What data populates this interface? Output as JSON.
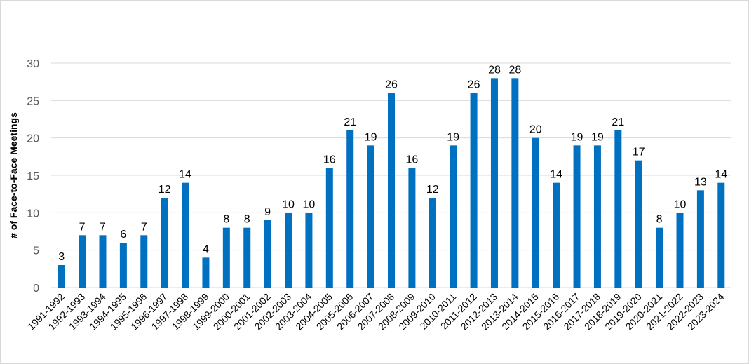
{
  "chart_data": {
    "type": "bar",
    "title": "",
    "xlabel": "",
    "ylabel": "# of Face-to-Face Meetings",
    "ylim": [
      0,
      30
    ],
    "yticks": [
      0,
      5,
      10,
      15,
      20,
      25,
      30
    ],
    "grid": true,
    "legend": "none",
    "bar_color": "#0070c0",
    "categories": [
      "1991-1992",
      "1992-1993",
      "1993-1994",
      "1994-1995",
      "1995-1996",
      "1996-1997",
      "1997-1998",
      "1998-1999",
      "1999-2000",
      "2000-2001",
      "2001-2002",
      "2002-2003",
      "2003-2004",
      "2004-2005",
      "2005-2006",
      "2006-2007",
      "2007-2008",
      "2008-2009",
      "2009-2010",
      "2010-2011",
      "2011-2012",
      "2012-2013",
      "2013-2014",
      "2014-2015",
      "2015-2016",
      "2016-2017",
      "2017-2018",
      "2018-2019",
      "2019-2020",
      "2020-2021",
      "2021-2022",
      "2022-2023",
      "2023-2024"
    ],
    "values": [
      3,
      7,
      7,
      6,
      7,
      12,
      14,
      4,
      8,
      8,
      9,
      10,
      10,
      16,
      21,
      19,
      26,
      16,
      12,
      19,
      26,
      28,
      28,
      20,
      14,
      19,
      19,
      21,
      17,
      8,
      10,
      13,
      14
    ]
  }
}
